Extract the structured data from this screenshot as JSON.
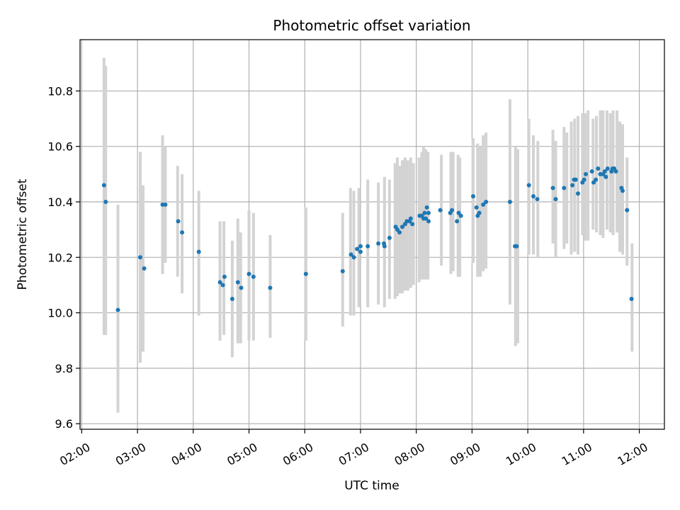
{
  "chart_data": {
    "type": "scatter",
    "title": "Photometric offset variation",
    "xlabel": "UTC time",
    "ylabel": "Photometric offset",
    "grid": true,
    "xlim": [
      1.97,
      12.45
    ],
    "ylim": [
      9.58,
      10.985
    ],
    "x_ticks": [
      {
        "value": 2,
        "label": "02:00"
      },
      {
        "value": 3,
        "label": "03:00"
      },
      {
        "value": 4,
        "label": "04:00"
      },
      {
        "value": 5,
        "label": "05:00"
      },
      {
        "value": 6,
        "label": "06:00"
      },
      {
        "value": 7,
        "label": "07:00"
      },
      {
        "value": 8,
        "label": "08:00"
      },
      {
        "value": 9,
        "label": "09:00"
      },
      {
        "value": 10,
        "label": "10:00"
      },
      {
        "value": 11,
        "label": "11:00"
      },
      {
        "value": 12,
        "label": "12:00"
      }
    ],
    "y_ticks": [
      {
        "value": 9.6,
        "label": "9.6"
      },
      {
        "value": 9.8,
        "label": "9.8"
      },
      {
        "value": 10.0,
        "label": "10.0"
      },
      {
        "value": 10.2,
        "label": "10.2"
      },
      {
        "value": 10.4,
        "label": "10.4"
      },
      {
        "value": 10.6,
        "label": "10.6"
      },
      {
        "value": 10.8,
        "label": "10.8"
      }
    ],
    "colors": {
      "points": "#1f77b4",
      "errorbars": "#d3d3d3",
      "grid": "#b0b0b0",
      "axes": "#000000"
    },
    "errorbars": [
      [
        2.4,
        9.92,
        10.92
      ],
      [
        2.43,
        9.92,
        10.89
      ],
      [
        2.65,
        9.64,
        10.39
      ],
      [
        3.05,
        9.82,
        10.58
      ],
      [
        3.1,
        9.86,
        10.46
      ],
      [
        3.45,
        10.14,
        10.64
      ],
      [
        3.5,
        10.18,
        10.6
      ],
      [
        3.72,
        10.13,
        10.53
      ],
      [
        3.8,
        10.07,
        10.5
      ],
      [
        4.1,
        9.99,
        10.44
      ],
      [
        4.48,
        9.9,
        10.33
      ],
      [
        4.55,
        9.92,
        10.33
      ],
      [
        4.7,
        9.84,
        10.26
      ],
      [
        4.8,
        9.89,
        10.34
      ],
      [
        4.85,
        9.89,
        10.29
      ],
      [
        5.0,
        9.9,
        10.37
      ],
      [
        5.08,
        9.9,
        10.36
      ],
      [
        5.38,
        9.91,
        10.28
      ],
      [
        6.02,
        9.9,
        10.38
      ],
      [
        6.68,
        9.95,
        10.36
      ],
      [
        6.82,
        9.99,
        10.45
      ],
      [
        6.88,
        9.99,
        10.44
      ],
      [
        6.97,
        10.02,
        10.45
      ],
      [
        7.13,
        10.02,
        10.48
      ],
      [
        7.32,
        10.03,
        10.47
      ],
      [
        7.43,
        10.02,
        10.49
      ],
      [
        7.52,
        10.05,
        10.48
      ],
      [
        7.62,
        10.05,
        10.54
      ],
      [
        7.66,
        10.06,
        10.56
      ],
      [
        7.7,
        10.07,
        10.53
      ],
      [
        7.75,
        10.07,
        10.55
      ],
      [
        7.8,
        10.08,
        10.56
      ],
      [
        7.85,
        10.08,
        10.55
      ],
      [
        7.9,
        10.09,
        10.56
      ],
      [
        7.95,
        10.1,
        10.54
      ],
      [
        8.05,
        10.11,
        10.56
      ],
      [
        8.1,
        10.12,
        10.58
      ],
      [
        8.13,
        10.12,
        10.6
      ],
      [
        8.17,
        10.12,
        10.59
      ],
      [
        8.21,
        10.12,
        10.58
      ],
      [
        8.45,
        10.17,
        10.57
      ],
      [
        8.62,
        10.14,
        10.58
      ],
      [
        8.66,
        10.15,
        10.58
      ],
      [
        8.75,
        10.13,
        10.57
      ],
      [
        8.78,
        10.13,
        10.56
      ],
      [
        9.02,
        10.18,
        10.63
      ],
      [
        9.1,
        10.13,
        10.61
      ],
      [
        9.15,
        10.13,
        10.6
      ],
      [
        9.2,
        10.15,
        10.64
      ],
      [
        9.25,
        10.16,
        10.65
      ],
      [
        9.68,
        10.03,
        10.77
      ],
      [
        9.78,
        9.88,
        10.6
      ],
      [
        9.82,
        9.89,
        10.59
      ],
      [
        10.02,
        10.21,
        10.7
      ],
      [
        10.1,
        10.21,
        10.64
      ],
      [
        10.18,
        10.2,
        10.62
      ],
      [
        10.45,
        10.25,
        10.66
      ],
      [
        10.5,
        10.2,
        10.62
      ],
      [
        10.65,
        10.23,
        10.67
      ],
      [
        10.7,
        10.25,
        10.65
      ],
      [
        10.78,
        10.21,
        10.69
      ],
      [
        10.84,
        10.22,
        10.7
      ],
      [
        10.9,
        10.21,
        10.71
      ],
      [
        10.98,
        10.28,
        10.72
      ],
      [
        11.03,
        10.26,
        10.72
      ],
      [
        11.08,
        10.26,
        10.73
      ],
      [
        11.17,
        10.3,
        10.7
      ],
      [
        11.23,
        10.29,
        10.71
      ],
      [
        11.3,
        10.28,
        10.73
      ],
      [
        11.35,
        10.27,
        10.73
      ],
      [
        11.42,
        10.3,
        10.73
      ],
      [
        11.48,
        10.29,
        10.72
      ],
      [
        11.53,
        10.28,
        10.73
      ],
      [
        11.6,
        10.29,
        10.73
      ],
      [
        11.65,
        10.22,
        10.69
      ],
      [
        11.7,
        10.21,
        10.68
      ],
      [
        11.78,
        10.17,
        10.56
      ],
      [
        11.87,
        9.86,
        10.25
      ]
    ],
    "points": [
      [
        2.4,
        10.46
      ],
      [
        2.43,
        10.4
      ],
      [
        2.65,
        10.01
      ],
      [
        3.05,
        10.2
      ],
      [
        3.12,
        10.16
      ],
      [
        3.45,
        10.39
      ],
      [
        3.5,
        10.39
      ],
      [
        3.73,
        10.33
      ],
      [
        3.8,
        10.29
      ],
      [
        4.1,
        10.22
      ],
      [
        4.48,
        10.11
      ],
      [
        4.53,
        10.1
      ],
      [
        4.56,
        10.13
      ],
      [
        4.7,
        10.05
      ],
      [
        4.8,
        10.11
      ],
      [
        4.86,
        10.09
      ],
      [
        5.0,
        10.14
      ],
      [
        5.08,
        10.13
      ],
      [
        5.38,
        10.09
      ],
      [
        6.02,
        10.14
      ],
      [
        6.68,
        10.15
      ],
      [
        6.83,
        10.21
      ],
      [
        6.88,
        10.2
      ],
      [
        6.94,
        10.23
      ],
      [
        7.0,
        10.24
      ],
      [
        7.0,
        10.22
      ],
      [
        7.13,
        10.24
      ],
      [
        7.32,
        10.25
      ],
      [
        7.42,
        10.25
      ],
      [
        7.43,
        10.24
      ],
      [
        7.52,
        10.27
      ],
      [
        7.63,
        10.31
      ],
      [
        7.66,
        10.3
      ],
      [
        7.7,
        10.29
      ],
      [
        7.75,
        10.31
      ],
      [
        7.8,
        10.32
      ],
      [
        7.83,
        10.33
      ],
      [
        7.88,
        10.33
      ],
      [
        7.9,
        10.34
      ],
      [
        7.93,
        10.32
      ],
      [
        8.06,
        10.35
      ],
      [
        8.1,
        10.35
      ],
      [
        8.13,
        10.34
      ],
      [
        8.15,
        10.36
      ],
      [
        8.17,
        10.34
      ],
      [
        8.19,
        10.38
      ],
      [
        8.22,
        10.33
      ],
      [
        8.22,
        10.36
      ],
      [
        8.43,
        10.37
      ],
      [
        8.61,
        10.36
      ],
      [
        8.64,
        10.37
      ],
      [
        8.73,
        10.33
      ],
      [
        8.76,
        10.36
      ],
      [
        8.8,
        10.35
      ],
      [
        9.02,
        10.42
      ],
      [
        9.08,
        10.38
      ],
      [
        9.1,
        10.35
      ],
      [
        9.13,
        10.36
      ],
      [
        9.2,
        10.39
      ],
      [
        9.25,
        10.4
      ],
      [
        9.68,
        10.4
      ],
      [
        9.77,
        10.24
      ],
      [
        9.8,
        10.24
      ],
      [
        10.02,
        10.46
      ],
      [
        10.1,
        10.42
      ],
      [
        10.17,
        10.41
      ],
      [
        10.45,
        10.45
      ],
      [
        10.5,
        10.41
      ],
      [
        10.65,
        10.45
      ],
      [
        10.8,
        10.46
      ],
      [
        10.83,
        10.48
      ],
      [
        10.86,
        10.48
      ],
      [
        10.9,
        10.43
      ],
      [
        10.98,
        10.47
      ],
      [
        11.01,
        10.48
      ],
      [
        11.04,
        10.5
      ],
      [
        11.15,
        10.51
      ],
      [
        11.18,
        10.47
      ],
      [
        11.22,
        10.48
      ],
      [
        11.26,
        10.52
      ],
      [
        11.3,
        10.5
      ],
      [
        11.35,
        10.5
      ],
      [
        11.38,
        10.51
      ],
      [
        11.4,
        10.49
      ],
      [
        11.43,
        10.52
      ],
      [
        11.5,
        10.51
      ],
      [
        11.52,
        10.52
      ],
      [
        11.55,
        10.52
      ],
      [
        11.58,
        10.51
      ],
      [
        11.68,
        10.45
      ],
      [
        11.7,
        10.44
      ],
      [
        11.78,
        10.37
      ],
      [
        11.86,
        10.05
      ]
    ]
  }
}
